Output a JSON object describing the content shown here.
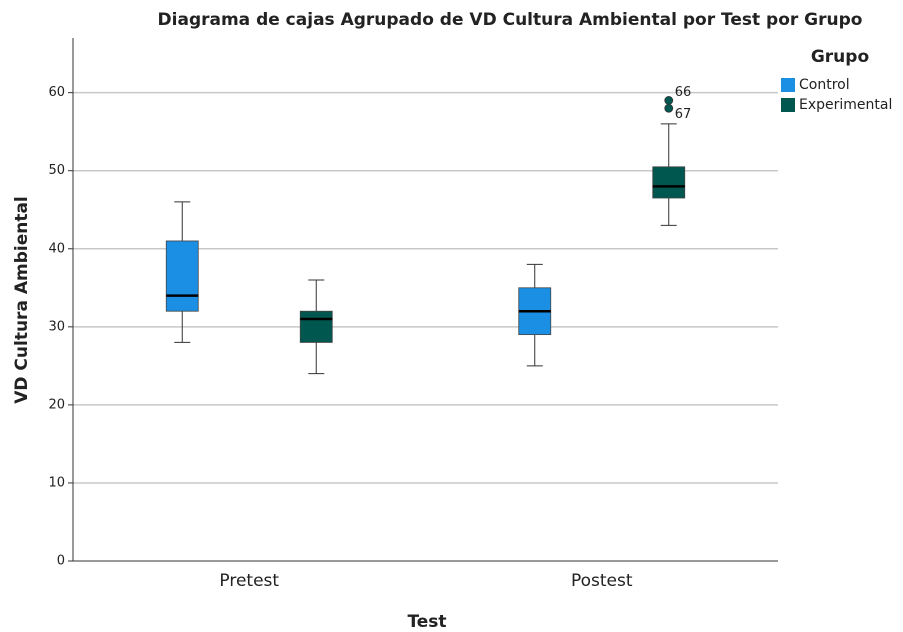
{
  "chart_data": {
    "type": "box",
    "title": "Diagrama de cajas Agrupado de VD Cultura Ambiental por Test por Grupo",
    "x_label": "Test",
    "y_label": "VD Cultura Ambiental",
    "legend_title": "Grupo",
    "categories": [
      "Pretest",
      "Postest"
    ],
    "series": [
      {
        "name": "Control",
        "color": "#1a8fe3",
        "values": [
          {
            "min": 28,
            "q1": 32,
            "median": 34,
            "q3": 41,
            "max": 46,
            "outliers": []
          },
          {
            "min": 25,
            "q1": 29,
            "median": 32,
            "q3": 35,
            "max": 38,
            "outliers": []
          }
        ]
      },
      {
        "name": "Experimental",
        "color": "#00574f",
        "values": [
          {
            "min": 24,
            "q1": 28,
            "median": 31,
            "q3": 32,
            "max": 36,
            "outliers": []
          },
          {
            "min": 43,
            "q1": 46.5,
            "median": 48,
            "q3": 50.5,
            "max": 56,
            "outliers": [
              59,
              58
            ],
            "outlier_labels": [
              "66",
              "67"
            ]
          }
        ]
      }
    ],
    "ylim": [
      0,
      67
    ],
    "yticks": [
      0,
      10,
      20,
      30,
      40,
      50,
      60
    ],
    "grid": true,
    "legend": "right"
  }
}
